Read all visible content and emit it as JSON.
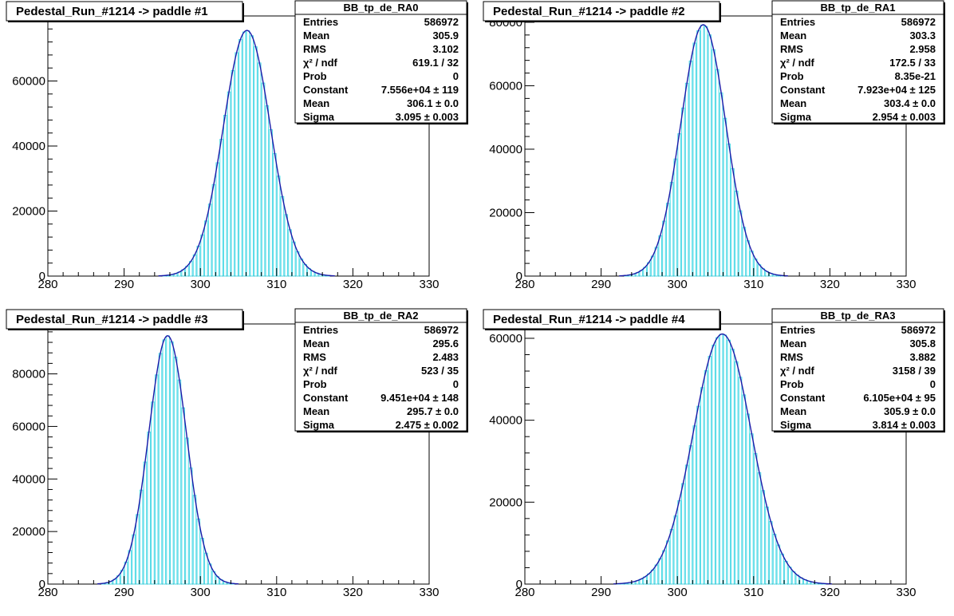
{
  "chart_data": [
    {
      "type": "bar",
      "title": "Pedestal_Run_#1214 -> paddle #1",
      "xlim": [
        280,
        330
      ],
      "ylim": [
        0,
        80000
      ],
      "xticks": [
        280,
        290,
        300,
        310,
        320,
        330
      ],
      "yticks": [
        0,
        20000,
        40000,
        60000
      ],
      "fit": {
        "constant": 75560,
        "mean": 306.1,
        "sigma": 3.095
      },
      "colors": {
        "bars": "#4dd9e6",
        "fit": "#1a1aa8"
      },
      "stats": {
        "name": "BB_tp_de_RA0",
        "rows": [
          {
            "label": "Entries",
            "value": "586972"
          },
          {
            "label": "Mean",
            "value": "305.9"
          },
          {
            "label": "RMS",
            "value": "3.102"
          },
          {
            "label": "χ² / ndf",
            "value": "619.1 / 32"
          },
          {
            "label": "Prob",
            "value": "0"
          },
          {
            "label": "Constant",
            "value": "7.556e+04 ± 119"
          },
          {
            "label": "Mean",
            "value": "306.1 ± 0.0"
          },
          {
            "label": "Sigma",
            "value": "3.095 ± 0.003"
          }
        ]
      }
    },
    {
      "type": "bar",
      "title": "Pedestal_Run_#1214 -> paddle #2",
      "xlim": [
        280,
        330
      ],
      "ylim": [
        0,
        82000
      ],
      "xticks": [
        280,
        290,
        300,
        310,
        320,
        330
      ],
      "yticks": [
        0,
        20000,
        40000,
        60000,
        80000
      ],
      "fit": {
        "constant": 79230,
        "mean": 303.4,
        "sigma": 2.954
      },
      "colors": {
        "bars": "#4dd9e6",
        "fit": "#1a1aa8"
      },
      "stats": {
        "name": "BB_tp_de_RA1",
        "rows": [
          {
            "label": "Entries",
            "value": "586972"
          },
          {
            "label": "Mean",
            "value": "303.3"
          },
          {
            "label": "RMS",
            "value": "2.958"
          },
          {
            "label": "χ² / ndf",
            "value": "172.5 / 33"
          },
          {
            "label": "Prob",
            "value": "8.35e-21"
          },
          {
            "label": "Constant",
            "value": "7.923e+04 ± 125"
          },
          {
            "label": "Mean",
            "value": "303.4 ± 0.0"
          },
          {
            "label": "Sigma",
            "value": "2.954 ± 0.003"
          }
        ]
      }
    },
    {
      "type": "bar",
      "title": "Pedestal_Run_#1214 -> paddle #3",
      "xlim": [
        280,
        330
      ],
      "ylim": [
        0,
        99000
      ],
      "xticks": [
        280,
        290,
        300,
        310,
        320,
        330
      ],
      "yticks": [
        0,
        20000,
        40000,
        60000,
        80000
      ],
      "fit": {
        "constant": 94510,
        "mean": 295.7,
        "sigma": 2.475
      },
      "colors": {
        "bars": "#4dd9e6",
        "fit": "#1a1aa8"
      },
      "stats": {
        "name": "BB_tp_de_RA2",
        "rows": [
          {
            "label": "Entries",
            "value": "586972"
          },
          {
            "label": "Mean",
            "value": "295.6"
          },
          {
            "label": "RMS",
            "value": "2.483"
          },
          {
            "label": "χ² / ndf",
            "value": "523 / 35"
          },
          {
            "label": "Prob",
            "value": "0"
          },
          {
            "label": "Constant",
            "value": "9.451e+04 ± 148"
          },
          {
            "label": "Mean",
            "value": "295.7 ± 0.0"
          },
          {
            "label": "Sigma",
            "value": "2.475 ± 0.002"
          }
        ]
      }
    },
    {
      "type": "bar",
      "title": "Pedestal_Run_#1214 -> paddle #4",
      "xlim": [
        280,
        330
      ],
      "ylim": [
        0,
        63500
      ],
      "xticks": [
        280,
        290,
        300,
        310,
        320,
        330
      ],
      "yticks": [
        0,
        20000,
        40000,
        60000
      ],
      "fit": {
        "constant": 61050,
        "mean": 305.9,
        "sigma": 3.814
      },
      "colors": {
        "bars": "#4dd9e6",
        "fit": "#1a1aa8"
      },
      "stats": {
        "name": "BB_tp_de_RA3",
        "rows": [
          {
            "label": "Entries",
            "value": "586972"
          },
          {
            "label": "Mean",
            "value": "305.8"
          },
          {
            "label": "RMS",
            "value": "3.882"
          },
          {
            "label": "χ² / ndf",
            "value": "3158 / 39"
          },
          {
            "label": "Prob",
            "value": "0"
          },
          {
            "label": "Constant",
            "value": "6.105e+04 ± 95"
          },
          {
            "label": "Mean",
            "value": "305.9 ± 0.0"
          },
          {
            "label": "Sigma",
            "value": "3.814 ± 0.003"
          }
        ]
      }
    }
  ]
}
